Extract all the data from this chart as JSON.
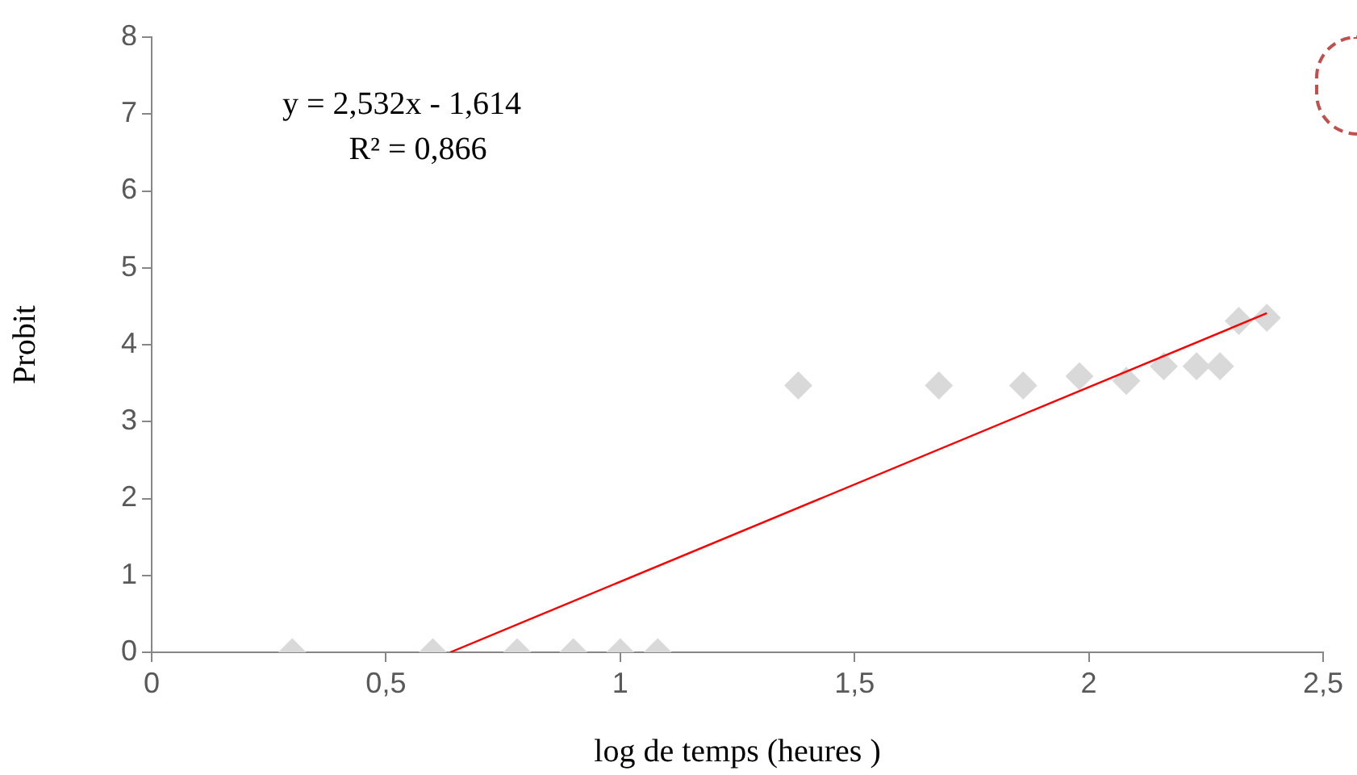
{
  "chart_data": {
    "type": "scatter",
    "xlabel": "log de temps (heures )",
    "ylabel": "Probit",
    "annotations": [
      "y = 2,532x - 1,614",
      "R² = 0,866"
    ],
    "xlim": [
      0,
      2.5
    ],
    "ylim": [
      0,
      8
    ],
    "xticks": [
      0,
      {
        "value": 0.5,
        "label": "0,5"
      },
      1,
      {
        "value": 1.5,
        "label": "1,5"
      },
      2,
      {
        "value": 2.5,
        "label": "2,5"
      }
    ],
    "yticks": [
      0,
      1,
      2,
      3,
      4,
      5,
      6,
      7,
      8
    ],
    "legend": false,
    "series": [
      {
        "marker": "diamond",
        "color": "#d9d9d9",
        "x": [
          0.3,
          0.6,
          0.78,
          0.9,
          1.0,
          1.08,
          1.38,
          1.68,
          1.86,
          1.98,
          2.08,
          2.16,
          2.23,
          2.28,
          2.32,
          2.38
        ],
        "values": [
          0,
          0,
          0,
          0,
          0,
          0,
          3.47,
          3.47,
          3.47,
          3.59,
          3.53,
          3.72,
          3.72,
          3.72,
          4.31,
          4.35
        ]
      },
      {
        "type": "line",
        "marker": "none",
        "color": "#ff0000",
        "x": [
          0.637,
          2.38
        ],
        "values": [
          0,
          4.41
        ]
      }
    ]
  }
}
